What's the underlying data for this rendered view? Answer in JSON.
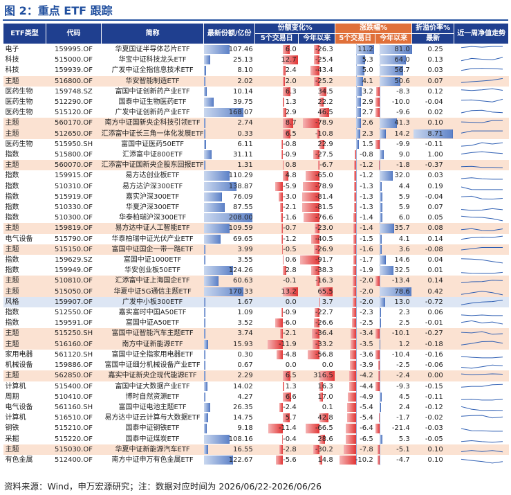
{
  "title": "图 2：重点 ETF 跟踪",
  "source_note": "资料来源：Wind，申万宏源研究；注：数据对应时间为 2026/06/22-2026/06/26",
  "headers": {
    "type": "ETF类型",
    "code": "代码",
    "name": "简称",
    "share": "最新份额/亿份",
    "share_change": "份额变化%",
    "price_change": "涨跌幅%",
    "premium": "折溢价率%",
    "trend": "近一周净值走势",
    "d5": "5个交易日",
    "ytd": "今年以来",
    "latest": "最新"
  },
  "colors": {
    "header_blue": "#1f3f8f",
    "header_orange": "#e0703a",
    "highlight_row": "#fbe2d2",
    "bar_blue": "#5f83c8",
    "bar_red": "#e13535",
    "bar_green": "#58a654",
    "spark": "#2f5fb3"
  },
  "chart_data": {
    "type": "table",
    "columns": [
      "ETF类型",
      "代码",
      "简称",
      "最新份额/亿份",
      "份额变化% 5个交易日",
      "份额变化% 今年以来",
      "涨跌幅% 5个交易日",
      "涨跌幅% 今年以来",
      "折溢价率% 最新",
      "近一周净值走势"
    ],
    "rows": [
      {
        "type": "电子",
        "code": "159995.OF",
        "name": "华夏国证半导体芯片ETF",
        "share": "107.46",
        "sc5": "6.0",
        "scy": "-26.3",
        "pc5": "11.2",
        "pcy": "81.0",
        "prem": "0.25",
        "hl": false
      },
      {
        "type": "科技",
        "code": "515000.OF",
        "name": "华宝中证科技龙头ETF",
        "share": "25.13",
        "sc5": "12.7",
        "scy": "-25.4",
        "pc5": "5.3",
        "pcy": "64.0",
        "prem": "0.13",
        "hl": false
      },
      {
        "type": "科技",
        "code": "159939.OF",
        "name": "广发中证全指信息技术ETF",
        "share": "8.10",
        "sc5": "2.4",
        "scy": "-43.4",
        "pc5": "5.0",
        "pcy": "56.7",
        "prem": "0.03",
        "hl": false
      },
      {
        "type": "主题",
        "code": "516800.OF",
        "name": "华安智能制造ETF",
        "share": "2.02",
        "sc5": "2.0",
        "scy": "-25.2",
        "pc5": "4.1",
        "pcy": "50.6",
        "prem": "0.07",
        "hl": true
      },
      {
        "type": "医药生物",
        "code": "159748.SZ",
        "name": "富国中证创新药产业ETF",
        "share": "10.14",
        "sc5": "6.3",
        "scy": "34.5",
        "pc5": "3.2",
        "pcy": "-8.3",
        "prem": "0.12",
        "hl": false
      },
      {
        "type": "医药生物",
        "code": "512290.OF",
        "name": "国泰中证生物医药ETF",
        "share": "39.75",
        "sc5": "1.3",
        "scy": "22.2",
        "pc5": "2.9",
        "pcy": "-10.0",
        "prem": "-0.04",
        "hl": false
      },
      {
        "type": "医药生物",
        "code": "515120.OF",
        "name": "广发中证创新药产业ETF",
        "share": "168.07",
        "sc5": "2.9",
        "scy": "46.5",
        "pc5": "2.7",
        "pcy": "-9.6",
        "prem": "0.02",
        "hl": false
      },
      {
        "type": "主题",
        "code": "560170.OF",
        "name": "南方中证国新央企科技引领ETF",
        "share": "2.74",
        "sc5": "8.7",
        "scy": "-78.9",
        "pc5": "2.6",
        "pcy": "41.3",
        "prem": "0.10",
        "hl": true
      },
      {
        "type": "主题",
        "code": "512650.OF",
        "name": "汇添富中证长三角一体化发展ETF",
        "share": "0.33",
        "sc5": "6.5",
        "scy": "-10.8",
        "pc5": "2.3",
        "pcy": "14.2",
        "prem": "8.71",
        "hl": true
      },
      {
        "type": "医药生物",
        "code": "515950.SH",
        "name": "富国中证医药50ETF",
        "share": "6.11",
        "sc5": "-0.8",
        "scy": "22.9",
        "pc5": "1.5",
        "pcy": "-9.9",
        "prem": "-0.11",
        "hl": false
      },
      {
        "type": "指数",
        "code": "515800.OF",
        "name": "汇添富中证800ETF",
        "share": "31.11",
        "sc5": "-0.9",
        "scy": "-27.5",
        "pc5": "-0.8",
        "pcy": "9.0",
        "prem": "1.00",
        "hl": false
      },
      {
        "type": "主题",
        "code": "560070.OF",
        "name": "汇添富中证国新央企股东回报ETF",
        "share": "1.31",
        "sc5": "0.8",
        "scy": "-6.7",
        "pc5": "-1.2",
        "pcy": "-1.8",
        "prem": "-0.37",
        "hl": true
      },
      {
        "type": "指数",
        "code": "159915.OF",
        "name": "易方达创业板ETF",
        "share": "110.29",
        "sc5": "4.8",
        "scy": "-65.0",
        "pc5": "-1.2",
        "pcy": "32.0",
        "prem": "0.03",
        "hl": false
      },
      {
        "type": "指数",
        "code": "510310.OF",
        "name": "易方达沪深300ETF",
        "share": "138.87",
        "sc5": "-5.9",
        "scy": "-78.9",
        "pc5": "-1.3",
        "pcy": "4.4",
        "prem": "0.19",
        "hl": false
      },
      {
        "type": "指数",
        "code": "515919.OF",
        "name": "嘉实沪深300ETF",
        "share": "76.09",
        "sc5": "-3.0",
        "scy": "-81.4",
        "pc5": "-1.3",
        "pcy": "5.9",
        "prem": "-0.04",
        "hl": false
      },
      {
        "type": "指数",
        "code": "510330.OF",
        "name": "华夏沪深300ETF",
        "share": "87.55",
        "sc5": "-2.1",
        "scy": "-81.5",
        "pc5": "-1.3",
        "pcy": "5.9",
        "prem": "0.07",
        "hl": false
      },
      {
        "type": "指数",
        "code": "510300.OF",
        "name": "华泰柏瑞沪深300ETF",
        "share": "208.00",
        "sc5": "-1.6",
        "scy": "-76.6",
        "pc5": "-1.4",
        "pcy": "6.0",
        "prem": "0.05",
        "hl": false
      },
      {
        "type": "主题",
        "code": "159819.OF",
        "name": "易方达中证人工智能ETF",
        "share": "109.59",
        "sc5": "-0.7",
        "scy": "-23.0",
        "pc5": "-1.4",
        "pcy": "35.7",
        "prem": "0.08",
        "hl": true
      },
      {
        "type": "电气设备",
        "code": "515790.OF",
        "name": "华泰柏瑞中证光伏产业ETF",
        "share": "69.65",
        "sc5": "-1.2",
        "scy": "-40.5",
        "pc5": "-1.5",
        "pcy": "4.1",
        "prem": "0.14",
        "hl": false
      },
      {
        "type": "主题",
        "code": "515150.OF",
        "name": "富国中证国企一带一路ETF",
        "share": "3.99",
        "sc5": "-0.5",
        "scy": "-26.9",
        "pc5": "-1.6",
        "pcy": "3.6",
        "prem": "-0.08",
        "hl": true
      },
      {
        "type": "指数",
        "code": "159629.SZ",
        "name": "富国中证1000ETF",
        "share": "3.55",
        "sc5": "0.6",
        "scy": "-91.7",
        "pc5": "-1.7",
        "pcy": "14.6",
        "prem": "0.04",
        "hl": false
      },
      {
        "type": "指数",
        "code": "159949.OF",
        "name": "华安创业板50ETF",
        "share": "124.26",
        "sc5": "2.8",
        "scy": "-38.3",
        "pc5": "-1.9",
        "pcy": "32.5",
        "prem": "0.01",
        "hl": false
      },
      {
        "type": "主题",
        "code": "510810.OF",
        "name": "汇添富中证上海国企ETF",
        "share": "60.63",
        "sc5": "-0.1",
        "scy": "-16.3",
        "pc5": "-2.0",
        "pcy": "-13.4",
        "prem": "0.14",
        "hl": true
      },
      {
        "type": "主题",
        "code": "515050.OF",
        "name": "华夏中证5G通信主题ETF",
        "share": "170.33",
        "sc5": "13.2",
        "scy": "65.5",
        "pc5": "-2.0",
        "pcy": "78.6",
        "prem": "0.42",
        "hl": true
      },
      {
        "type": "风格",
        "code": "159907.OF",
        "name": "广发中小板300ETF",
        "share": "1.67",
        "sc5": "0.0",
        "scy": "3.7",
        "pc5": "-2.0",
        "pcy": "13.0",
        "prem": "-0.72",
        "hl": false,
        "alt": true
      },
      {
        "type": "指数",
        "code": "512550.OF",
        "name": "嘉实富时中国A50ETF",
        "share": "1.09",
        "sc5": "-0.9",
        "scy": "-22.7",
        "pc5": "-2.3",
        "pcy": "2.3",
        "prem": "0.06",
        "hl": false
      },
      {
        "type": "指数",
        "code": "159591.OF",
        "name": "富国中证A50ETF",
        "share": "3.52",
        "sc5": "-6.0",
        "scy": "-26.6",
        "pc5": "-2.5",
        "pcy": "2.5",
        "prem": "-0.01",
        "hl": false
      },
      {
        "type": "主题",
        "code": "515250.SH",
        "name": "富国中证智能汽车主题ETF",
        "share": "3.74",
        "sc5": "-2.1",
        "scy": "-36.4",
        "pc5": "-3.4",
        "pcy": "-10.1",
        "prem": "-0.27",
        "hl": true
      },
      {
        "type": "主题",
        "code": "516160.OF",
        "name": "南方中证新能源ETF",
        "share": "15.93",
        "sc5": "-11.9",
        "scy": "-33.2",
        "pc5": "-3.5",
        "pcy": "1.2",
        "prem": "-0.18",
        "hl": true
      },
      {
        "type": "家用电器",
        "code": "561120.SH",
        "name": "富国中证全指家用电器ETF",
        "share": "0.30",
        "sc5": "-4.8",
        "scy": "-56.8",
        "pc5": "-3.6",
        "pcy": "-10.4",
        "prem": "-0.16",
        "hl": false
      },
      {
        "type": "机械设备",
        "code": "159886.OF",
        "name": "富国中证细分机械设备产业ETF",
        "share": "0.67",
        "sc5": "0.0",
        "scy": "0.0",
        "pc5": "-3.9",
        "pcy": "-2.5",
        "prem": "-0.06",
        "hl": false
      },
      {
        "type": "主题",
        "code": "562850.OF",
        "name": "嘉实中证新央企现代能源ETF",
        "share": "2.29",
        "sc5": "6.5",
        "scy": "316.5",
        "pc5": "-4.2",
        "pcy": "-2.4",
        "prem": "0.00",
        "hl": true
      },
      {
        "type": "计算机",
        "code": "515400.OF",
        "name": "富国中证大数据产业ETF",
        "share": "14.02",
        "sc5": "1.3",
        "scy": "16.3",
        "pc5": "-4.4",
        "pcy": "-9.3",
        "prem": "-0.15",
        "hl": false
      },
      {
        "type": "周期",
        "code": "510410.OF",
        "name": "博时自然资源ETF",
        "share": "4.27",
        "sc5": "6.6",
        "scy": "17.0",
        "pc5": "-4.9",
        "pcy": "4.5",
        "prem": "-0.11",
        "hl": false
      },
      {
        "type": "电气设备",
        "code": "561160.SH",
        "name": "富国中证电池主题ETF",
        "share": "26.35",
        "sc5": "-2.4",
        "scy": "0.1",
        "pc5": "-5.4",
        "pcy": "2.4",
        "prem": "-0.12",
        "hl": false
      },
      {
        "type": "计算机",
        "code": "516510.OF",
        "name": "易方达中证云计算与大数据ETF",
        "share": "14.75",
        "sc5": "5.7",
        "scy": "42.8",
        "pc5": "-5.4",
        "pcy": "-1.7",
        "prem": "-0.02",
        "hl": false
      },
      {
        "type": "钢铁",
        "code": "515210.OF",
        "name": "国泰中证钢铁ETF",
        "share": "9.18",
        "sc5": "-11.4",
        "scy": "-66.5",
        "pc5": "-6.4",
        "pcy": "-21.4",
        "prem": "-0.03",
        "hl": false
      },
      {
        "type": "采掘",
        "code": "515220.OF",
        "name": "国泰中证煤炭ETF",
        "share": "108.16",
        "sc5": "-0.4",
        "scy": "28.6",
        "pc5": "-6.5",
        "pcy": "5.3",
        "prem": "-0.05",
        "hl": false
      },
      {
        "type": "主题",
        "code": "515030.OF",
        "name": "华夏中证新能源汽车ETF",
        "share": "16.55",
        "sc5": "-2.8",
        "scy": "-30.2",
        "pc5": "-7.8",
        "pcy": "-5.1",
        "prem": "0.10",
        "hl": true
      },
      {
        "type": "有色金属",
        "code": "512400.OF",
        "name": "南方中证申万有色金属ETF",
        "share": "122.67",
        "sc5": "-5.6",
        "scy": "14.8",
        "pc5": "-10.2",
        "pcy": "-4.7",
        "prem": "0.10",
        "hl": false
      }
    ]
  }
}
